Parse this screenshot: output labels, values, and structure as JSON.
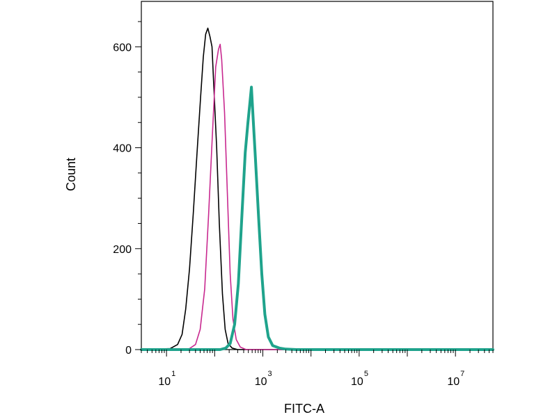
{
  "chart_data": {
    "type": "line",
    "title": "",
    "xlabel": "FITC-A",
    "ylabel": "Count",
    "x_scale": "log",
    "xlim": [
      3,
      60000000
    ],
    "ylim": [
      0,
      690
    ],
    "y_ticks": [
      {
        "value": 0,
        "label": "0"
      },
      {
        "value": 200,
        "label": "200"
      },
      {
        "value": 400,
        "label": "400"
      },
      {
        "value": 600,
        "label": "600"
      }
    ],
    "x_ticks": [
      {
        "value": 10,
        "base": "10",
        "exp": "1"
      },
      {
        "value": 1000,
        "base": "10",
        "exp": "3"
      },
      {
        "value": 100000,
        "base": "10",
        "exp": "5"
      },
      {
        "value": 10000000,
        "base": "10",
        "exp": "7"
      }
    ],
    "grid": false,
    "legend": "none",
    "series": [
      {
        "color": "#000000",
        "width": 1.6,
        "points": [
          [
            3,
            0
          ],
          [
            12,
            2
          ],
          [
            17,
            10
          ],
          [
            21,
            30
          ],
          [
            25,
            80
          ],
          [
            30,
            160
          ],
          [
            36,
            270
          ],
          [
            43,
            390
          ],
          [
            51,
            500
          ],
          [
            58,
            580
          ],
          [
            65,
            625
          ],
          [
            72,
            637
          ],
          [
            80,
            620
          ],
          [
            88,
            600
          ],
          [
            95,
            530
          ],
          [
            110,
            400
          ],
          [
            125,
            250
          ],
          [
            145,
            110
          ],
          [
            165,
            40
          ],
          [
            190,
            12
          ],
          [
            230,
            3
          ],
          [
            300,
            0
          ],
          [
            60000000,
            0
          ]
        ]
      },
      {
        "color": "#c8288f",
        "width": 1.6,
        "points": [
          [
            3,
            0
          ],
          [
            20,
            0
          ],
          [
            30,
            2
          ],
          [
            40,
            10
          ],
          [
            50,
            40
          ],
          [
            62,
            120
          ],
          [
            75,
            270
          ],
          [
            90,
            430
          ],
          [
            105,
            560
          ],
          [
            120,
            595
          ],
          [
            130,
            605
          ],
          [
            140,
            575
          ],
          [
            160,
            470
          ],
          [
            185,
            300
          ],
          [
            210,
            150
          ],
          [
            240,
            60
          ],
          [
            280,
            20
          ],
          [
            340,
            5
          ],
          [
            450,
            0
          ],
          [
            60000000,
            0
          ]
        ]
      },
      {
        "color": "#1fa38c",
        "width": 4,
        "points": [
          [
            3,
            0
          ],
          [
            130,
            0
          ],
          [
            170,
            3
          ],
          [
            210,
            12
          ],
          [
            260,
            50
          ],
          [
            310,
            130
          ],
          [
            370,
            270
          ],
          [
            430,
            390
          ],
          [
            490,
            450
          ],
          [
            540,
            490
          ],
          [
            580,
            520
          ],
          [
            620,
            470
          ],
          [
            700,
            380
          ],
          [
            820,
            260
          ],
          [
            950,
            150
          ],
          [
            1100,
            70
          ],
          [
            1300,
            25
          ],
          [
            1600,
            8
          ],
          [
            2200,
            3
          ],
          [
            3000,
            1
          ],
          [
            5000,
            0
          ],
          [
            60000000,
            0
          ]
        ]
      }
    ]
  }
}
